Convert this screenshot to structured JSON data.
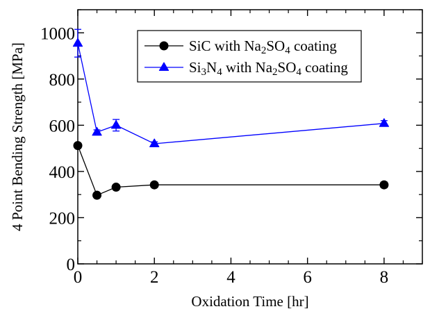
{
  "chart_data": {
    "type": "line",
    "xlabel": "Oxidation Time [hr]",
    "ylabel": "4 Point Bending Strength  [MPa]",
    "xlim": [
      0,
      9
    ],
    "ylim": [
      0,
      1100
    ],
    "xticks": [
      0,
      2,
      4,
      6,
      8
    ],
    "yticks": [
      0,
      200,
      400,
      600,
      800,
      1000
    ],
    "x_minor_step": 0.5,
    "y_minor_step": 100,
    "grid": false,
    "legend_position": "top-right",
    "series": [
      {
        "name": "SiC with Na2SO4 coating",
        "legend_parts": [
          {
            "t": "SiC with Na",
            "sub": false
          },
          {
            "t": "2",
            "sub": true
          },
          {
            "t": "SO",
            "sub": false
          },
          {
            "t": "4",
            "sub": true
          },
          {
            "t": " coating",
            "sub": false
          }
        ],
        "marker": "circle",
        "color": "#000000",
        "x": [
          0,
          0.5,
          1,
          2,
          8
        ],
        "y": [
          512,
          297,
          332,
          342,
          342
        ],
        "err": [
          0,
          8,
          10,
          0,
          12
        ]
      },
      {
        "name": "Si3N4 with Na2SO4 coating",
        "legend_parts": [
          {
            "t": "Si",
            "sub": false
          },
          {
            "t": "3",
            "sub": true
          },
          {
            "t": "N",
            "sub": false
          },
          {
            "t": "4",
            "sub": true
          },
          {
            "t": " with Na",
            "sub": false
          },
          {
            "t": "2",
            "sub": true
          },
          {
            "t": "SO",
            "sub": false
          },
          {
            "t": "4",
            "sub": true
          },
          {
            "t": " coating",
            "sub": false
          }
        ],
        "marker": "triangle",
        "color": "#0000ff",
        "x": [
          0,
          0.5,
          1,
          2,
          8
        ],
        "y": [
          955,
          570,
          600,
          520,
          608
        ],
        "err": [
          60,
          10,
          25,
          8,
          12
        ]
      }
    ]
  }
}
